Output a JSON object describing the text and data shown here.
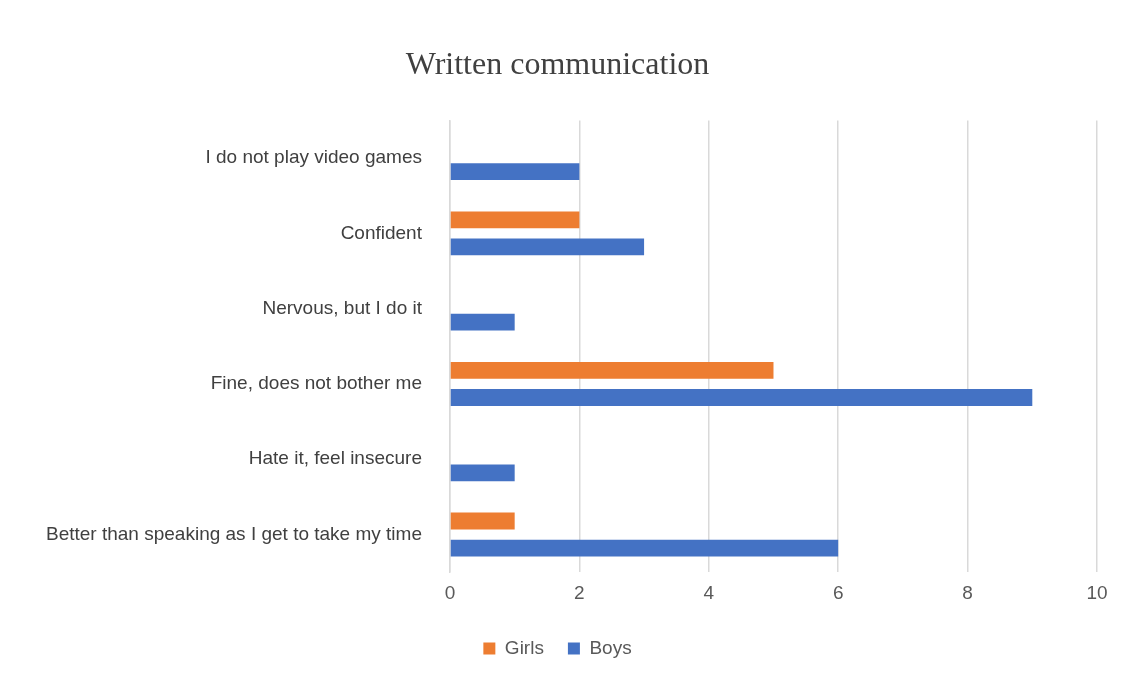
{
  "chart_data": {
    "type": "bar",
    "orientation": "horizontal",
    "title": "Written communication",
    "categories": [
      "I do not play video games",
      "Confident",
      "Nervous, but I do it",
      "Fine, does not bother me",
      "Hate it, feel insecure",
      "Better than speaking as I get to take my time"
    ],
    "series": [
      {
        "name": "Girls",
        "color": "#ed7d31",
        "values": [
          null,
          2,
          null,
          5,
          null,
          1
        ]
      },
      {
        "name": "Boys",
        "color": "#4472c4",
        "values": [
          2,
          3,
          1,
          9,
          1,
          6
        ]
      }
    ],
    "xlim": [
      0,
      10
    ],
    "xticks": [
      0,
      2,
      4,
      6,
      8,
      10
    ],
    "grid": "x",
    "legend": "bottom"
  }
}
